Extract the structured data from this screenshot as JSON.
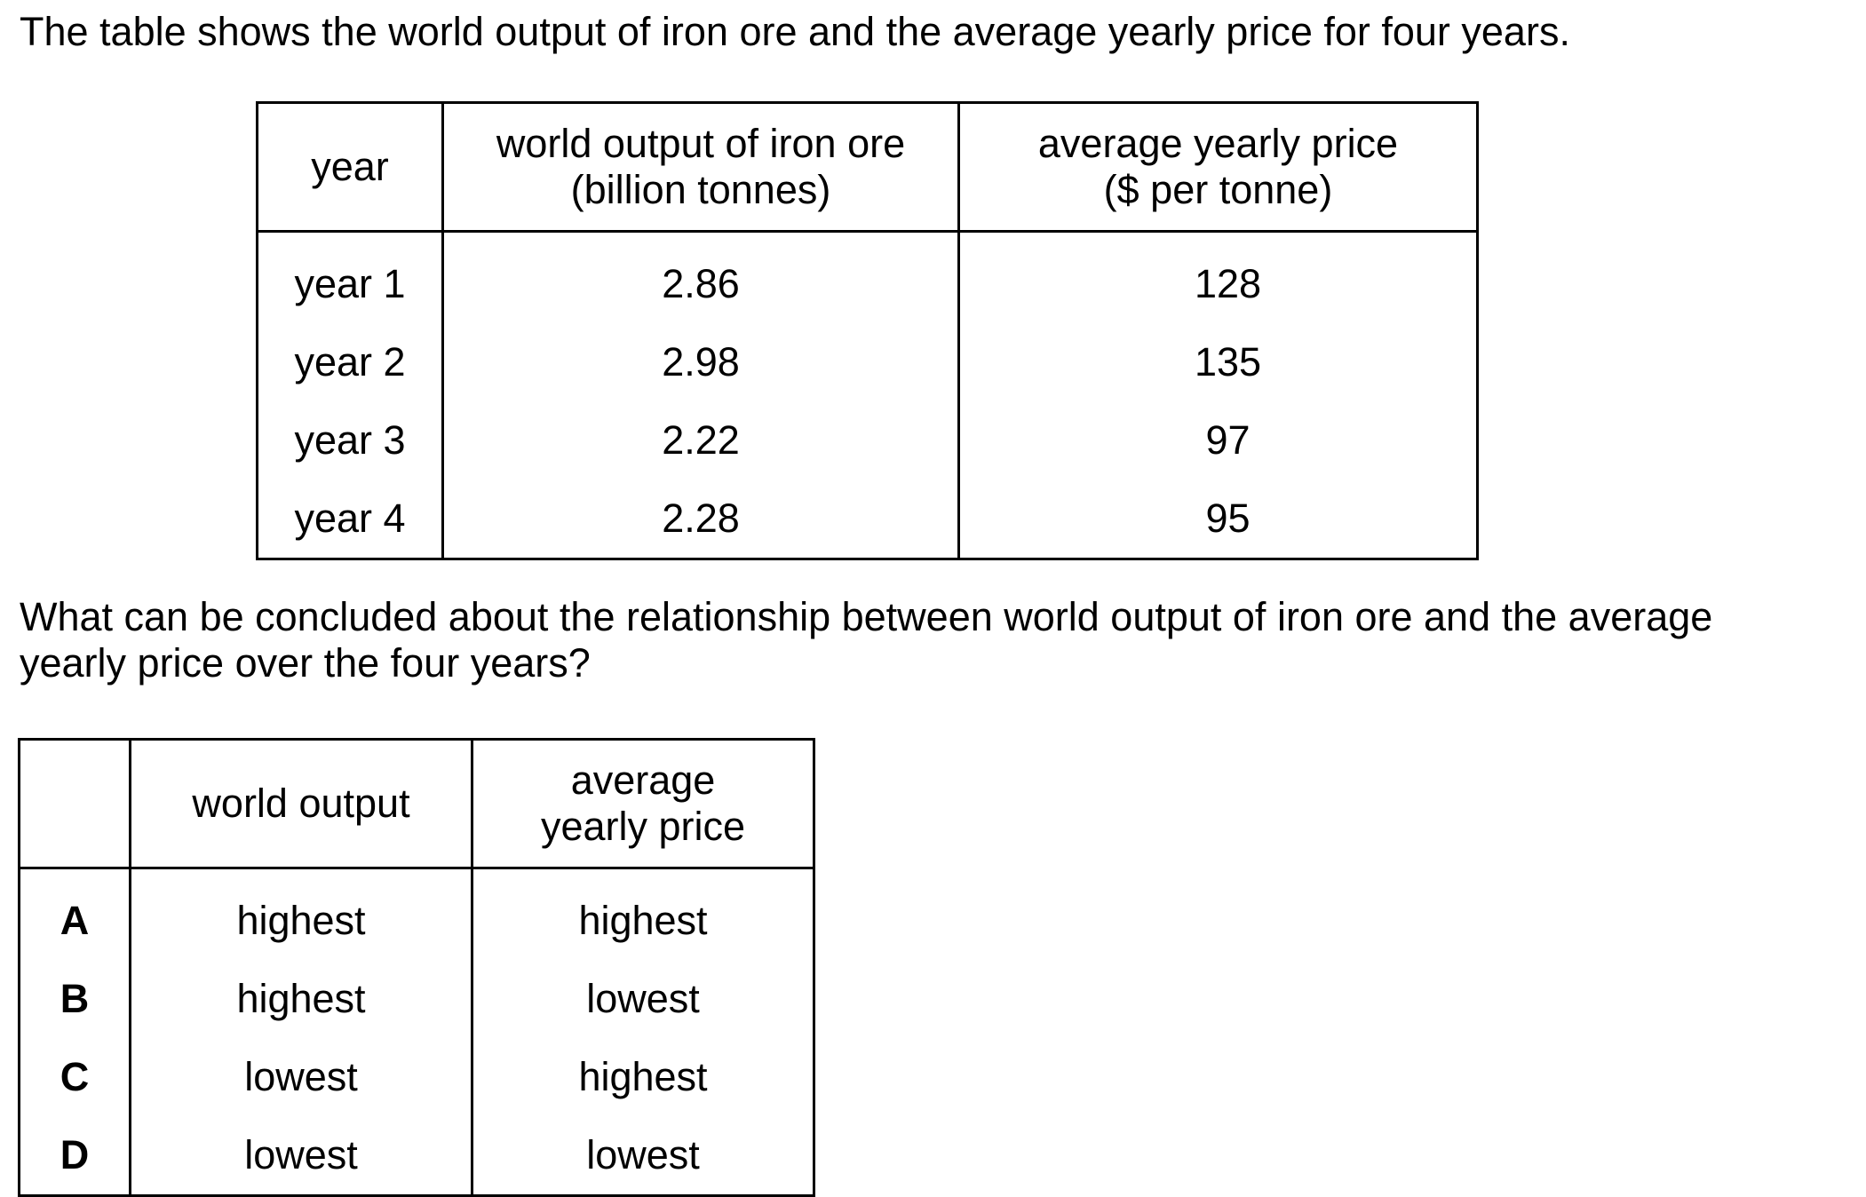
{
  "intro": "The table shows the world output of iron ore and the average yearly price for four years.",
  "data_table": {
    "headers": [
      {
        "line1": "year",
        "line2": ""
      },
      {
        "line1": "world output of iron ore",
        "line2": "(billion tonnes)"
      },
      {
        "line1": "average yearly price",
        "line2": "($ per tonne)"
      }
    ],
    "rows": [
      {
        "year": "year 1",
        "output": "2.86",
        "price": "128"
      },
      {
        "year": "year 2",
        "output": "2.98",
        "price": "135"
      },
      {
        "year": "year 3",
        "output": "2.22",
        "price": "97"
      },
      {
        "year": "year 4",
        "output": "2.28",
        "price": "95"
      }
    ]
  },
  "question": {
    "line1": "What can be concluded about the relationship between world output of iron ore and the average",
    "line2": "yearly price over the four years?"
  },
  "options_table": {
    "headers": [
      {
        "line1": "",
        "line2": ""
      },
      {
        "line1": "world output",
        "line2": ""
      },
      {
        "line1": "average",
        "line2": "yearly price"
      }
    ],
    "rows": [
      {
        "letter": "A",
        "output": "highest",
        "price": "highest"
      },
      {
        "letter": "B",
        "output": "highest",
        "price": "lowest"
      },
      {
        "letter": "C",
        "output": "lowest",
        "price": "highest"
      },
      {
        "letter": "D",
        "output": "lowest",
        "price": "lowest"
      }
    ]
  }
}
